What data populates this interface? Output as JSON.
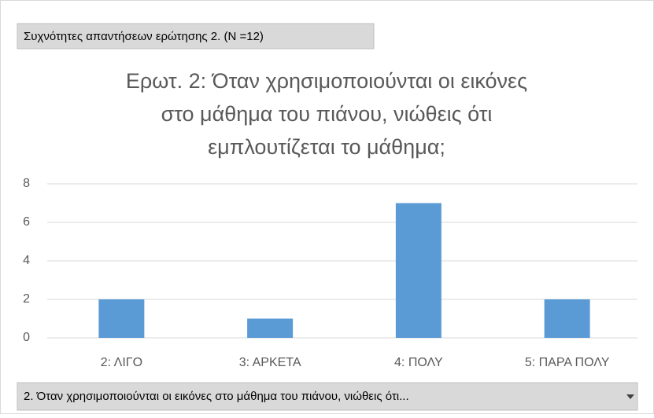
{
  "chart_data": {
    "type": "bar",
    "filter_button": "Συχνότητες απαντήσεων ερώτησης 2. (N =12)",
    "title": [
      "Ερωτ. 2: Όταν χρησιμοποιούνται οι εικόνες",
      "στο μάθημα του πιάνου, νιώθεις ότι",
      "εμπλουτίζεται το μάθημα;"
    ],
    "categories": [
      "2: ΛΙΓΟ",
      "3: ΑΡΚΕΤΑ",
      "4: ΠΟΛΥ",
      "5: ΠΑΡΑ ΠΟΛΥ"
    ],
    "values": [
      2,
      1,
      7,
      2
    ],
    "color": "#5b9bd5",
    "ylim": [
      0,
      8
    ],
    "yticks": [
      0,
      2,
      4,
      6,
      8
    ],
    "grid": true,
    "axis_field_button": "2. Όταν χρησιμοποιούνται οι εικόνες στο μάθημα του πιάνου, νιώθεις ότι..."
  }
}
